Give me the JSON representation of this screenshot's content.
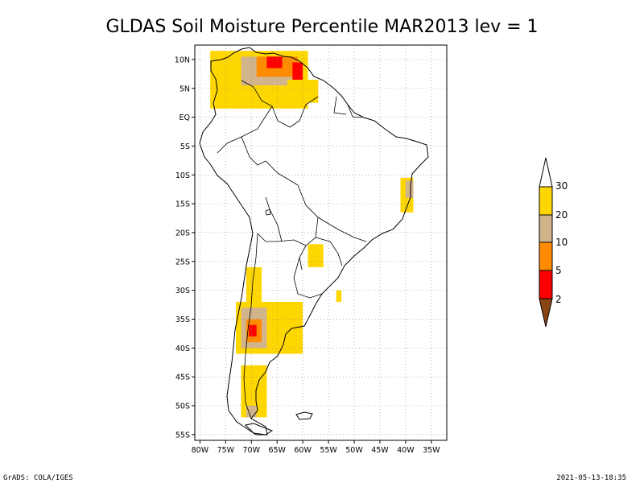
{
  "title": "GLDAS Soil Moisture Percentile MAR2013 lev = 1",
  "map": {
    "lon_min": -81,
    "lon_max": -32,
    "lat_min": -56,
    "lat_max": 12.5,
    "lat_ticks": [
      {
        "value": 10,
        "label": "10N"
      },
      {
        "value": 5,
        "label": "5N"
      },
      {
        "value": 0,
        "label": "EQ"
      },
      {
        "value": -5,
        "label": "5S"
      },
      {
        "value": -10,
        "label": "10S"
      },
      {
        "value": -15,
        "label": "15S"
      },
      {
        "value": -20,
        "label": "20S"
      },
      {
        "value": -25,
        "label": "25S"
      },
      {
        "value": -30,
        "label": "30S"
      },
      {
        "value": -35,
        "label": "35S"
      },
      {
        "value": -40,
        "label": "40S"
      },
      {
        "value": -45,
        "label": "45S"
      },
      {
        "value": -50,
        "label": "50S"
      },
      {
        "value": -55,
        "label": "55S"
      }
    ],
    "lon_ticks": [
      {
        "value": -80,
        "label": "80W"
      },
      {
        "value": -75,
        "label": "75W"
      },
      {
        "value": -70,
        "label": "70W"
      },
      {
        "value": -65,
        "label": "65W"
      },
      {
        "value": -60,
        "label": "60W"
      },
      {
        "value": -55,
        "label": "55W"
      },
      {
        "value": -50,
        "label": "50W"
      },
      {
        "value": -45,
        "label": "45W"
      },
      {
        "value": -40,
        "label": "40W"
      },
      {
        "value": -35,
        "label": "35W"
      }
    ],
    "grid": "dotted"
  },
  "legend": {
    "placement": "right",
    "boundaries": [
      "30",
      "20",
      "10",
      "5",
      "2"
    ],
    "colors": {
      "above30": "#ffffff",
      "20-30": "#ffd700",
      "10-20": "#d2b48c",
      "5-10": "#ff8c00",
      "2-5": "#ff0000",
      "below2": "#8b4513"
    }
  },
  "anomaly_regions": [
    {
      "name": "northern-south-america",
      "lon": [
        -78,
        -59
      ],
      "lat": [
        1.5,
        11.5
      ],
      "level": "20-30"
    },
    {
      "name": "venezuela-tan-core",
      "lon": [
        -72,
        -62
      ],
      "lat": [
        5.5,
        10.5
      ],
      "level": "10-20"
    },
    {
      "name": "venezuela-orange",
      "lon": [
        -69,
        -61
      ],
      "lat": [
        7,
        10.5
      ],
      "level": "5-10"
    },
    {
      "name": "venezuela-red-west",
      "lon": [
        -67,
        -64
      ],
      "lat": [
        8.5,
        10.5
      ],
      "level": "2-5"
    },
    {
      "name": "orinoco-delta-red",
      "lon": [
        -62,
        -60
      ],
      "lat": [
        6.5,
        9.5
      ],
      "level": "2-5"
    },
    {
      "name": "guyana-yellow",
      "lon": [
        -63,
        -57
      ],
      "lat": [
        2.5,
        6.5
      ],
      "level": "20-30"
    },
    {
      "name": "bahia-east-brazil",
      "lon": [
        -41,
        -38.5
      ],
      "lat": [
        -16.5,
        -10.5
      ],
      "level": "20-30"
    },
    {
      "name": "bahia-tan",
      "lon": [
        -40,
        -38.5
      ],
      "lat": [
        -14,
        -11
      ],
      "level": "10-20"
    },
    {
      "name": "paraguay-yellow",
      "lon": [
        -59,
        -56
      ],
      "lat": [
        -26,
        -22
      ],
      "level": "20-30"
    },
    {
      "name": "uruguay-coast",
      "lon": [
        -53.5,
        -52.5
      ],
      "lat": [
        -32,
        -30
      ],
      "level": "20-30"
    },
    {
      "name": "andes-chile-north",
      "lon": [
        -71,
        -68
      ],
      "lat": [
        -32,
        -26
      ],
      "level": "20-30"
    },
    {
      "name": "central-argentina-chile",
      "lon": [
        -73,
        -60
      ],
      "lat": [
        -41,
        -32
      ],
      "level": "20-30"
    },
    {
      "name": "cuyo-tan",
      "lon": [
        -72,
        -67
      ],
      "lat": [
        -40,
        -33
      ],
      "level": "10-20"
    },
    {
      "name": "cuyo-orange",
      "lon": [
        -71,
        -68
      ],
      "lat": [
        -39,
        -35
      ],
      "level": "5-10"
    },
    {
      "name": "cuyo-red",
      "lon": [
        -70.5,
        -69
      ],
      "lat": [
        -38,
        -36
      ],
      "level": "2-5"
    },
    {
      "name": "patagonia-yellow",
      "lon": [
        -72,
        -67
      ],
      "lat": [
        -52,
        -43
      ],
      "level": "20-30"
    },
    {
      "name": "patagonia-tan",
      "lon": [
        -71,
        -69
      ],
      "lat": [
        -52,
        -50
      ],
      "level": "10-20"
    }
  ],
  "footer": {
    "left": "GrADS: COLA/IGES",
    "right": "2021-05-13-18:35"
  }
}
